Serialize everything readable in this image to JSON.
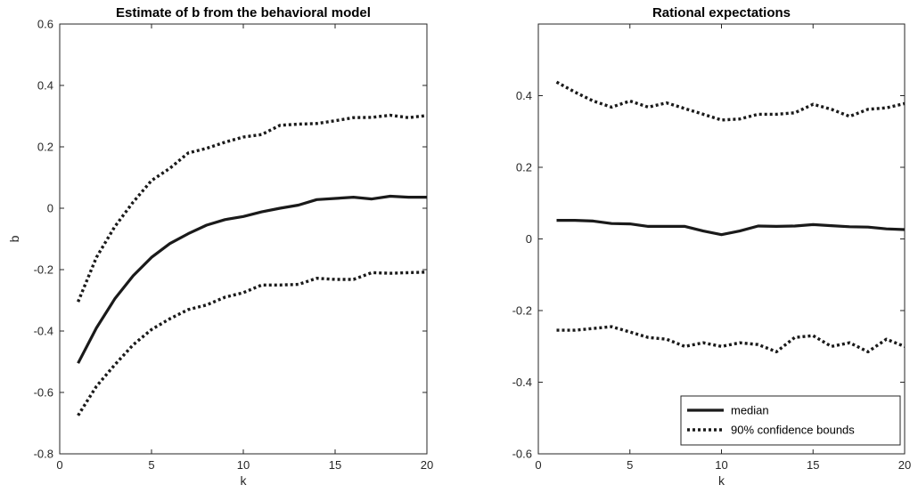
{
  "chart_data": [
    {
      "type": "line",
      "title": "Estimate of b from the behavioral model",
      "xlabel": "k",
      "ylabel": "b",
      "xlim": [
        0,
        20
      ],
      "ylim": [
        -0.8,
        0.6
      ],
      "xticks": [
        0,
        5,
        10,
        15,
        20
      ],
      "yticks": [
        -0.8,
        -0.6,
        -0.4,
        -0.2,
        0,
        0.2,
        0.4,
        0.6
      ],
      "xtick_labels": [
        "0",
        "5",
        "10",
        "15",
        "20"
      ],
      "ytick_labels": [
        "-0.8",
        "-0.6",
        "-0.4",
        "-0.2",
        "0",
        "0.2",
        "0.4",
        "0.6"
      ],
      "grid": false,
      "x": [
        1,
        2,
        3,
        4,
        5,
        6,
        7,
        8,
        9,
        10,
        11,
        12,
        13,
        14,
        15,
        16,
        17,
        18,
        19,
        20
      ],
      "series": [
        {
          "style": "solid",
          "values": [
            -0.505,
            -0.39,
            -0.295,
            -0.22,
            -0.16,
            -0.115,
            -0.083,
            -0.055,
            -0.037,
            -0.027,
            -0.012,
            0.0,
            0.01,
            0.028,
            0.032,
            0.036,
            0.03,
            0.039,
            0.036,
            0.036
          ]
        },
        {
          "style": "dotted",
          "values": [
            -0.305,
            -0.16,
            -0.06,
            0.02,
            0.09,
            0.13,
            0.18,
            0.195,
            0.215,
            0.232,
            0.24,
            0.27,
            0.274,
            0.276,
            0.285,
            0.295,
            0.296,
            0.303,
            0.295,
            0.302
          ]
        },
        {
          "style": "dotted",
          "values": [
            -0.675,
            -0.58,
            -0.51,
            -0.445,
            -0.395,
            -0.36,
            -0.33,
            -0.315,
            -0.29,
            -0.275,
            -0.25,
            -0.25,
            -0.248,
            -0.228,
            -0.232,
            -0.232,
            -0.21,
            -0.212,
            -0.21,
            -0.208
          ]
        }
      ]
    },
    {
      "type": "line",
      "title": "Rational expectations",
      "xlabel": "k",
      "ylabel": "",
      "xlim": [
        0,
        20
      ],
      "ylim": [
        -0.6,
        0.6
      ],
      "xticks": [
        0,
        5,
        10,
        15,
        20
      ],
      "yticks": [
        -0.6,
        -0.4,
        -0.2,
        0,
        0.2,
        0.4
      ],
      "xtick_labels": [
        "0",
        "5",
        "10",
        "15",
        "20"
      ],
      "ytick_labels": [
        "-0.6",
        "-0.4",
        "-0.2",
        "0",
        "0.2",
        "0.4"
      ],
      "grid": false,
      "legend_position": "bottom-right",
      "x": [
        1,
        2,
        3,
        4,
        5,
        6,
        7,
        8,
        9,
        10,
        11,
        12,
        13,
        14,
        15,
        16,
        17,
        18,
        19,
        20
      ],
      "series": [
        {
          "name": "median",
          "style": "solid",
          "values": [
            0.052,
            0.052,
            0.05,
            0.043,
            0.042,
            0.035,
            0.035,
            0.035,
            0.022,
            0.012,
            0.022,
            0.036,
            0.035,
            0.036,
            0.04,
            0.037,
            0.034,
            0.033,
            0.028,
            0.026
          ]
        },
        {
          "name": "90% confidence bounds",
          "style": "dotted",
          "values": [
            0.438,
            0.41,
            0.385,
            0.368,
            0.385,
            0.368,
            0.38,
            0.364,
            0.348,
            0.332,
            0.335,
            0.348,
            0.348,
            0.352,
            0.376,
            0.362,
            0.342,
            0.362,
            0.366,
            0.378
          ]
        },
        {
          "style": "dotted",
          "values": [
            -0.255,
            -0.255,
            -0.25,
            -0.245,
            -0.26,
            -0.275,
            -0.28,
            -0.3,
            -0.29,
            -0.3,
            -0.29,
            -0.295,
            -0.315,
            -0.275,
            -0.27,
            -0.3,
            -0.29,
            -0.315,
            -0.28,
            -0.3
          ]
        }
      ]
    }
  ]
}
